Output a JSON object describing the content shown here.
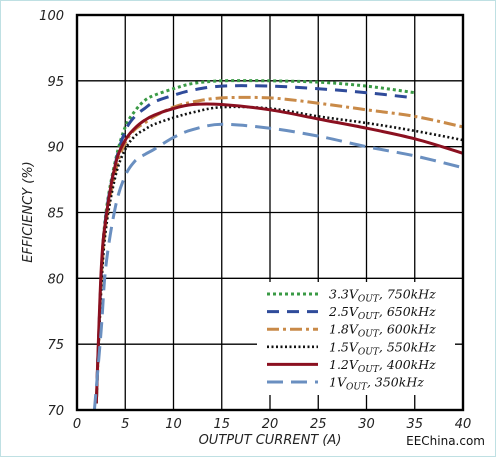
{
  "chart_data": {
    "type": "line",
    "xlabel": "OUTPUT CURRENT (A)",
    "ylabel": "EFFICIENCY (%)",
    "xlim": [
      0,
      40
    ],
    "ylim": [
      70,
      100
    ],
    "xticks": [
      0,
      5,
      10,
      15,
      20,
      25,
      30,
      35,
      40
    ],
    "yticks": [
      70,
      75,
      80,
      85,
      90,
      95,
      100
    ],
    "grid": true,
    "legend_position": "bottom-right",
    "series": [
      {
        "name": "3.3VOUT, 750kHz",
        "legend": {
          "pre": "3.3V",
          "sub": "OUT",
          "post": ", 750kHz"
        },
        "color": "#3a9a45",
        "dash": "3,3",
        "width": 3,
        "x": [
          2,
          2.5,
          3,
          4,
          5,
          6,
          7,
          8,
          10,
          12,
          15,
          20,
          25,
          30,
          35
        ],
        "y": [
          70.5,
          80,
          85,
          89,
          91.5,
          92.7,
          93.5,
          93.9,
          94.4,
          94.8,
          95,
          95,
          94.9,
          94.6,
          94.1
        ]
      },
      {
        "name": "2.5VOUT, 650kHz",
        "legend": {
          "pre": "2.5V",
          "sub": "OUT",
          "post": ", 650kHz"
        },
        "color": "#2f4b9a",
        "dash": "12,8",
        "width": 3,
        "x": [
          2,
          2.5,
          3,
          4,
          5,
          6,
          7,
          8,
          10,
          12,
          15,
          20,
          25,
          30,
          35
        ],
        "y": [
          70.5,
          80,
          84.8,
          88.8,
          91.2,
          92.3,
          92.9,
          93.4,
          93.9,
          94.3,
          94.6,
          94.6,
          94.4,
          94.1,
          93.7
        ]
      },
      {
        "name": "1.8VOUT, 600kHz",
        "legend": {
          "pre": "1.8V",
          "sub": "OUT",
          "post": ", 600kHz"
        },
        "color": "#c98a48",
        "dash": "12,4,3,4",
        "width": 3,
        "x": [
          2,
          2.5,
          3,
          4,
          5,
          6,
          7,
          8,
          10,
          12,
          15,
          20,
          25,
          30,
          35,
          40
        ],
        "y": [
          70.5,
          79.5,
          84.2,
          88.2,
          90.3,
          91.3,
          91.8,
          92.3,
          93,
          93.4,
          93.7,
          93.7,
          93.3,
          92.8,
          92.3,
          91.5
        ]
      },
      {
        "name": "1.5VOUT, 550kHz",
        "legend": {
          "pre": "1.5V",
          "sub": "OUT",
          "post": ", 550kHz"
        },
        "color": "#111111",
        "dash": "2,2.5",
        "width": 2.6,
        "x": [
          2,
          2.5,
          3,
          4,
          5,
          6,
          7,
          8,
          10,
          12,
          15,
          20,
          25,
          30,
          35,
          40
        ],
        "y": [
          70.5,
          79,
          83.8,
          87.8,
          89.8,
          90.8,
          91.3,
          91.7,
          92.2,
          92.6,
          93,
          92.9,
          92.3,
          91.8,
          91.2,
          90.5
        ]
      },
      {
        "name": "1.2VOUT, 400kHz",
        "legend": {
          "pre": "1.2V",
          "sub": "OUT",
          "post": ", 400kHz"
        },
        "color": "#8b1020",
        "dash": "",
        "width": 3,
        "x": [
          2,
          2.5,
          3,
          4,
          5,
          6,
          7,
          8,
          10,
          12,
          15,
          20,
          25,
          30,
          35,
          40
        ],
        "y": [
          70.5,
          80.5,
          84.6,
          88.7,
          90.5,
          91.4,
          92,
          92.4,
          92.9,
          93.2,
          93.2,
          92.8,
          92.1,
          91.4,
          90.6,
          89.5
        ]
      },
      {
        "name": "1VOUT, 350kHz",
        "legend": {
          "pre": "1V",
          "sub": "OUT",
          "post": ", 350kHz"
        },
        "color": "#6a8fc0",
        "dash": "16,8",
        "width": 3,
        "x": [
          1.8,
          2.5,
          3,
          4,
          5,
          6,
          7,
          8,
          10,
          12,
          15,
          20,
          25,
          30,
          35,
          40
        ],
        "y": [
          70,
          76,
          81,
          85.5,
          87.8,
          88.9,
          89.4,
          89.8,
          90.7,
          91.3,
          91.7,
          91.4,
          90.8,
          90,
          89.3,
          88.4
        ]
      }
    ]
  },
  "watermark": "EEChina.com"
}
